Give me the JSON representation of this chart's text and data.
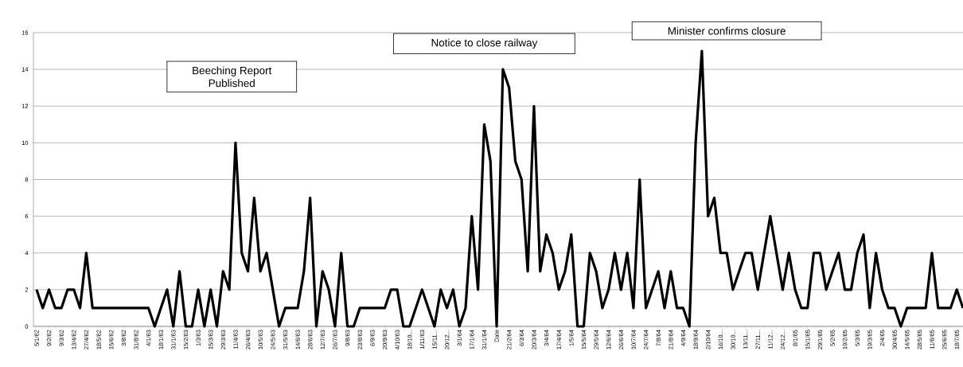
{
  "chart_data": {
    "type": "line",
    "categories": [
      "5/1/62",
      null,
      "9/2/62",
      null,
      "9/3/62",
      null,
      "13/4/62",
      null,
      "27/4/62",
      null,
      "18/5/62",
      null,
      "15/6/62",
      null,
      "3/8/62",
      null,
      "31/8/62",
      null,
      "4/1/63",
      null,
      "18/1/63",
      null,
      "31/1/63",
      null,
      "15/2/63",
      null,
      "1/3/63",
      null,
      "15/3/63",
      null,
      "29/3/63",
      null,
      "11/4/63",
      null,
      "26/4/63",
      null,
      "10/5/63",
      null,
      "24/5/63",
      null,
      "31/5/63",
      null,
      "14/6/63",
      null,
      "28/6/63",
      null,
      "12/7/63",
      null,
      "26/7/63",
      null,
      "9/8/63",
      null,
      "23/8/63",
      null,
      "6/9/63",
      null,
      "20/9/63",
      null,
      "4/10/63",
      null,
      "18/10...",
      null,
      "1/11/63",
      null,
      "15/11...",
      null,
      "20/12...",
      null,
      "3/1/64",
      null,
      "17/1/64",
      null,
      "31/1/64",
      null,
      "Date",
      null,
      "21/2/64",
      null,
      "6/3/64",
      null,
      "20/3/64",
      null,
      "3/4/64",
      null,
      "17/4/64",
      null,
      "1/5/64",
      null,
      "15/5/64",
      null,
      "29/5/64",
      null,
      "12/6/64",
      null,
      "26/6/64",
      null,
      "10/7/64",
      null,
      "24/7/64",
      null,
      "7/8/64",
      null,
      "21/8/64",
      null,
      "4/9/64",
      null,
      "18/9/64",
      null,
      "2/10/64",
      null,
      "16/10...",
      null,
      "30/10...",
      null,
      "13/11...",
      null,
      "27/11...",
      null,
      "11/12...",
      null,
      "24/12...",
      null,
      "8/1/65",
      null,
      "15/1/65",
      null,
      "29/1/65",
      null,
      "5/2/65",
      null,
      "19/2/65",
      null,
      "5/3/65",
      null,
      "19/3/65",
      null,
      "2/4/65",
      null,
      "30/4/65",
      null,
      "14/5/65",
      null,
      "28/5/65",
      null,
      "11/6/65",
      null,
      "25/6/65",
      null,
      "18/7/65",
      null
    ],
    "values": [
      2,
      1,
      2,
      1,
      1,
      2,
      2,
      1,
      4,
      1,
      1,
      1,
      1,
      1,
      1,
      1,
      1,
      1,
      1,
      0,
      1,
      2,
      0,
      3,
      0,
      0,
      2,
      0,
      2,
      0,
      3,
      2,
      10,
      4,
      3,
      7,
      3,
      4,
      2,
      0,
      1,
      1,
      1,
      3,
      7,
      0,
      3,
      2,
      0,
      4,
      0,
      0,
      1,
      1,
      1,
      1,
      1,
      2,
      2,
      0,
      0,
      1,
      2,
      1,
      0,
      2,
      1,
      2,
      0,
      1,
      6,
      2,
      11,
      9,
      0,
      14,
      13,
      9,
      8,
      3,
      12,
      3,
      5,
      4,
      2,
      3,
      5,
      0,
      0,
      4,
      3,
      1,
      2,
      4,
      2,
      4,
      1,
      8,
      1,
      2,
      3,
      1,
      3,
      1,
      1,
      0,
      10,
      15,
      6,
      7,
      4,
      4,
      2,
      3,
      4,
      4,
      2,
      4,
      6,
      4,
      2,
      4,
      2,
      1,
      1,
      4,
      4,
      2,
      3,
      4,
      2,
      2,
      4,
      5,
      1,
      4,
      2,
      1,
      1,
      0,
      1,
      1,
      1,
      1,
      4,
      1,
      1,
      1,
      2,
      1
    ],
    "color": "#000000",
    "ylim": [
      0,
      16
    ],
    "yticks": [
      0,
      2,
      4,
      6,
      8,
      10,
      12,
      14,
      16
    ],
    "grid": "y",
    "annotations": [
      "Beeching Report Published",
      "Notice to close railway",
      "Minister confirms closure"
    ]
  }
}
